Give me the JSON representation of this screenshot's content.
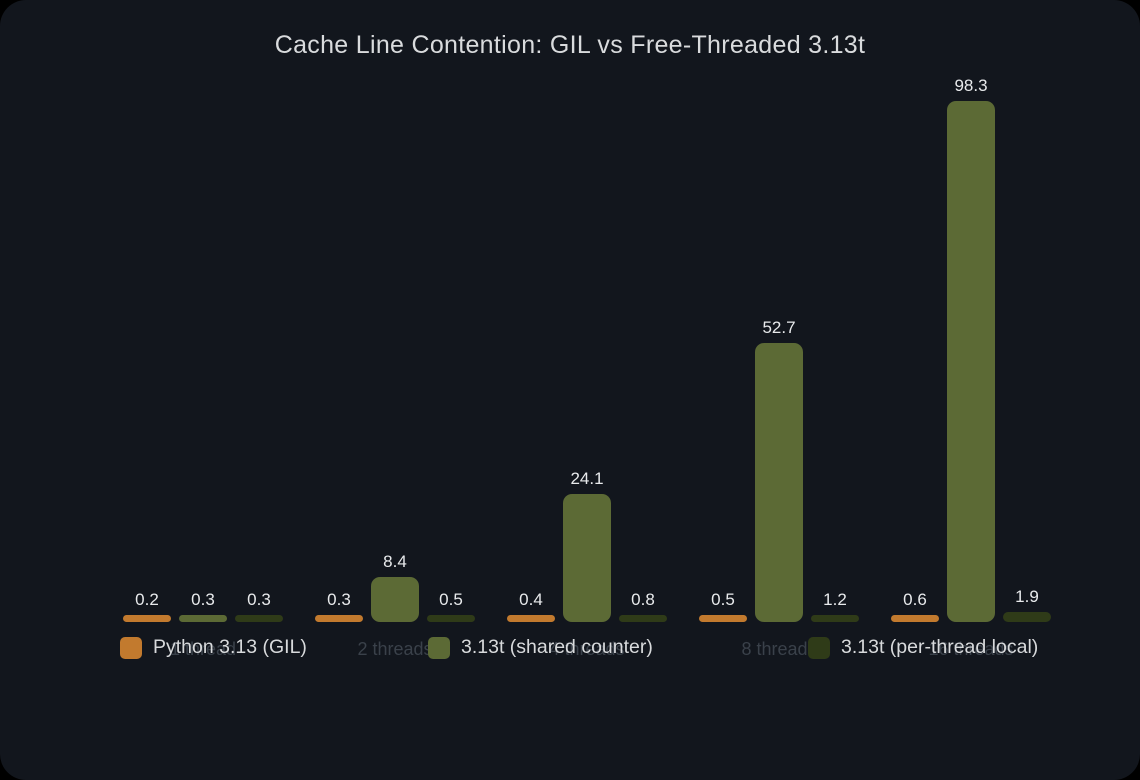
{
  "title": "Cache Line Contention: GIL vs Free-Threaded 3.13t",
  "colors": {
    "panel_background": "#12161d",
    "outer_background": "#000000",
    "title_text": "#d9dbdd",
    "value_label_text": "#e8eaec",
    "tick_label_text": "#3a414a",
    "legend_text": "#d8dadc"
  },
  "chart_data": {
    "type": "bar",
    "title": "Cache Line Contention: GIL vs Free-Threaded 3.13t",
    "categories": [
      "1 thread",
      "2 threads",
      "4 threads",
      "8 threads",
      "16 threads"
    ],
    "series": [
      {
        "name": "Python 3.13 (GIL)",
        "color": "#c27a2e",
        "values": [
          0.2,
          0.3,
          0.4,
          0.5,
          0.6
        ]
      },
      {
        "name": "3.13t (shared counter)",
        "color": "#5c6a35",
        "values": [
          0.3,
          8.4,
          24.1,
          52.7,
          98.3
        ]
      },
      {
        "name": "3.13t (per-thread local)",
        "color": "#2f3b18",
        "values": [
          0.3,
          0.5,
          0.8,
          1.2,
          1.9
        ]
      }
    ],
    "xlabel": "",
    "ylabel": "",
    "ylim": [
      0,
      105
    ],
    "grid": false,
    "axes_visible": false,
    "value_labels": true,
    "value_label_format": "one_decimal",
    "legend_position": "bottom"
  }
}
